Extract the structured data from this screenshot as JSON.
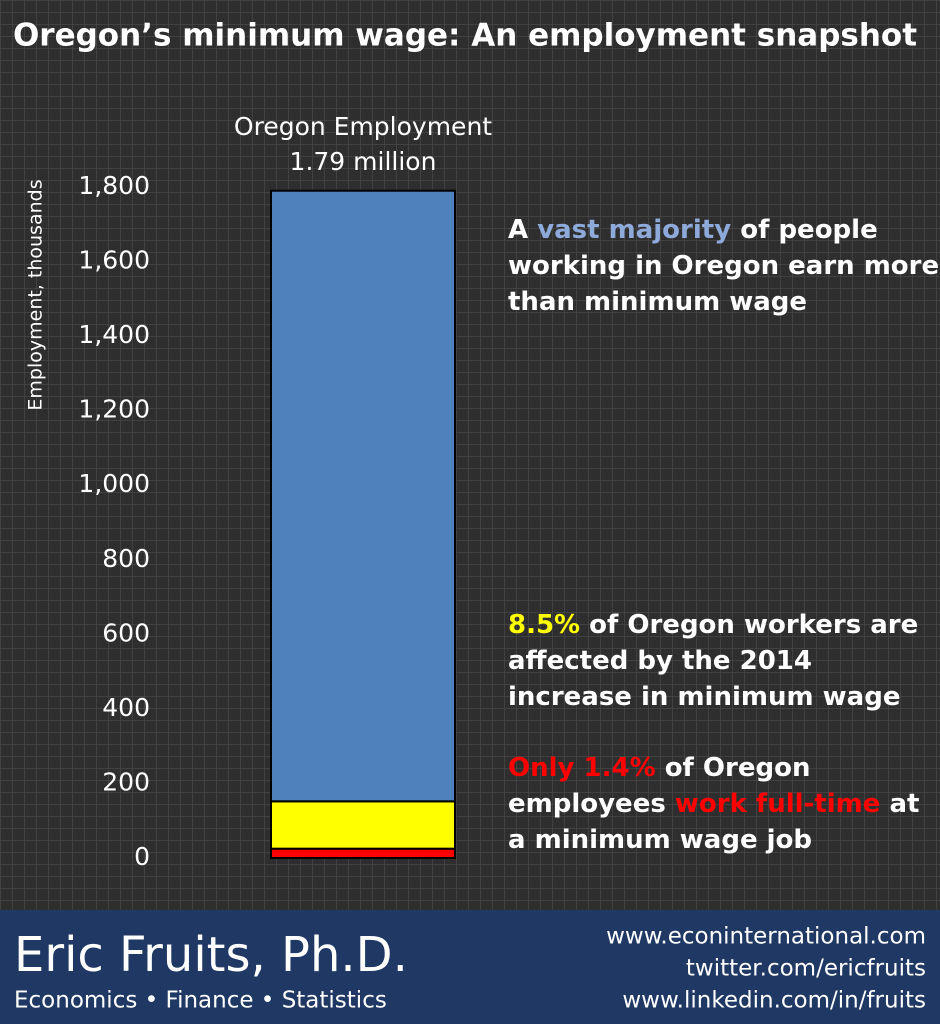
{
  "chart_data": {
    "type": "stacked_bar",
    "title": "Oregon’s minimum wage: An employment snapshot",
    "y_label": "Employment, thousands",
    "categories": [
      "Oregon Employment"
    ],
    "total_label": "1.79 million",
    "series": [
      {
        "color": "#ff0000",
        "values": [
          25
        ]
      },
      {
        "color": "#ffff00",
        "values": [
          127
        ]
      },
      {
        "color": "#4f81bd",
        "values": [
          1638
        ]
      }
    ],
    "ylim": [
      0,
      1800
    ],
    "yticks": [
      0,
      200,
      400,
      600,
      800,
      {
        "value": 1000,
        "label": "1,000"
      },
      {
        "value": 1200,
        "label": "1,200"
      },
      {
        "value": 1400,
        "label": "1,400"
      },
      {
        "value": 1600,
        "label": "1,600"
      },
      {
        "value": 1800,
        "label": "1,800"
      }
    ],
    "grid": false,
    "annotations": [
      [
        [
          {
            "text": "A ",
            "color": "#ffffff"
          },
          {
            "text": "vast majority",
            "color": "#8eaadb"
          },
          {
            "text": " of people",
            "color": "#ffffff"
          }
        ],
        [
          {
            "text": "working in Oregon earn more",
            "color": "#ffffff"
          }
        ],
        [
          {
            "text": "than minimum wage",
            "color": "#ffffff"
          }
        ]
      ],
      [
        [
          {
            "text": "8.5%",
            "color": "#ffff00"
          },
          {
            "text": " of Oregon workers are",
            "color": "#ffffff"
          }
        ],
        [
          {
            "text": "affected by the 2014",
            "color": "#ffffff"
          }
        ],
        [
          {
            "text": "increase in minimum wage",
            "color": "#ffffff"
          }
        ]
      ],
      [
        [
          {
            "text": "Only 1.4%",
            "color": "#ff0000"
          },
          {
            "text": " of Oregon",
            "color": "#ffffff"
          }
        ],
        [
          {
            "text": "employees ",
            "color": "#ffffff"
          },
          {
            "text": "work full-time",
            "color": "#ff0000"
          },
          {
            "text": " at",
            "color": "#ffffff"
          }
        ],
        [
          {
            "text": "a minimum wage job",
            "color": "#ffffff"
          }
        ]
      ]
    ]
  },
  "footer": {
    "name": "Eric Fruits, Ph.D.",
    "tagline": "Economics • Finance • Statistics",
    "links": [
      "www.econinternational.com",
      "twitter.com/ericfruits",
      "www.linkedin.com/in/fruits"
    ]
  }
}
